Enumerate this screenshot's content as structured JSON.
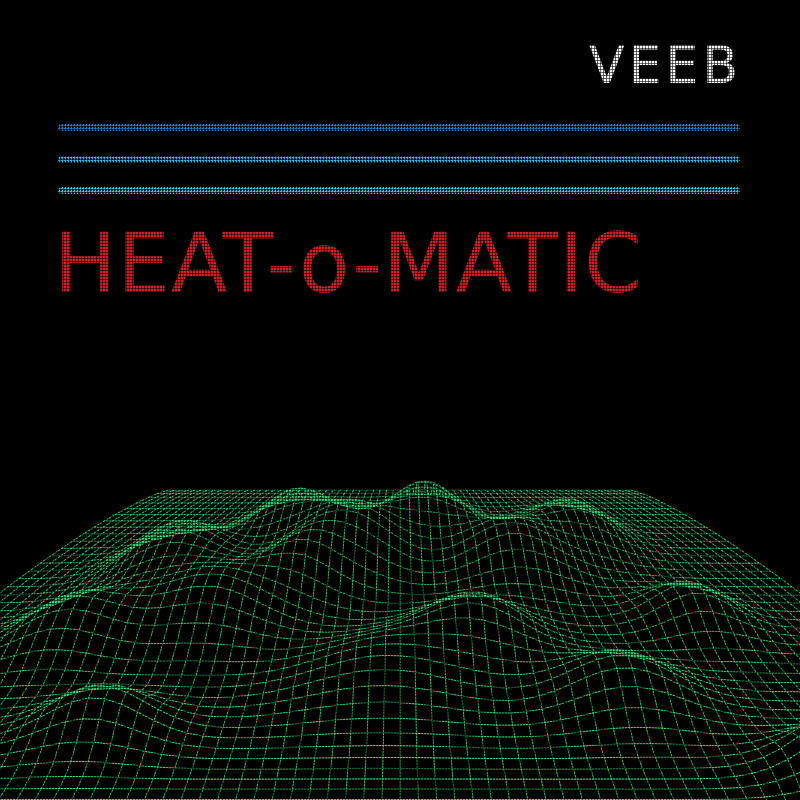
{
  "cover": {
    "artist": "VEEB",
    "title": "HEAT-o-MATIC"
  },
  "colors": {
    "background": "#000000",
    "artist_text": "#f4f4f4",
    "title_text": "#d61e23",
    "stripe_1": "#1f7fc4",
    "stripe_2": "#27b6e6",
    "stripe_3": "#29c8f0",
    "terrain": "#2fe07c"
  },
  "artwork": {
    "description_icon": "wireframe-terrain-icon",
    "stripe_count": 3
  }
}
